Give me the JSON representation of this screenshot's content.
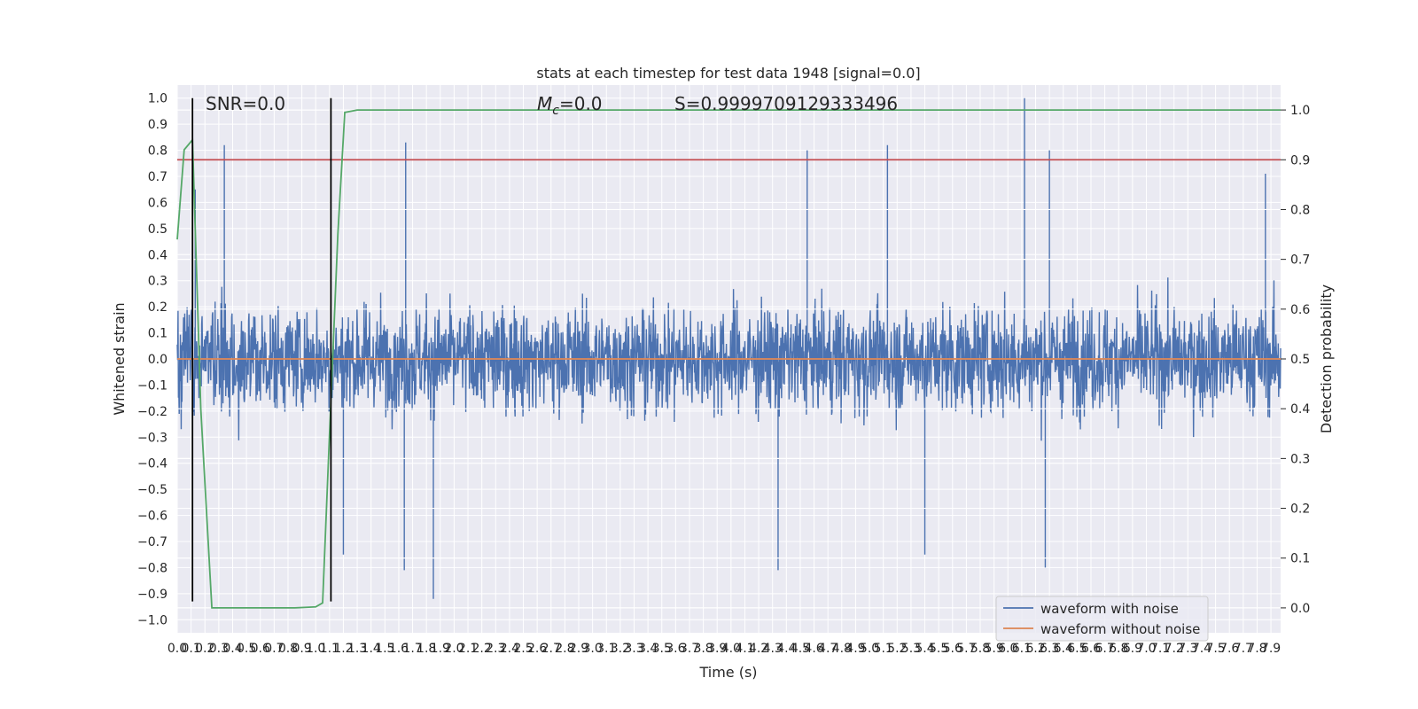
{
  "chart_data": {
    "type": "line",
    "title": "stats at each timestep for test data 1948 [signal=0.0]",
    "xlabel": "Time (s)",
    "ylabel": "Whitened strain",
    "y2label": "Detection probability",
    "xlim": [
      0.0,
      7.97
    ],
    "ylim": [
      -1.05,
      1.05
    ],
    "y2lim": [
      -0.05,
      1.05
    ],
    "x_tick_step": 0.1,
    "y_ticks": [
      -1.0,
      -0.9,
      -0.8,
      -0.7,
      -0.6,
      -0.5,
      -0.4,
      -0.3,
      -0.2,
      -0.1,
      0.0,
      0.1,
      0.2,
      0.3,
      0.4,
      0.5,
      0.6,
      0.7,
      0.8,
      0.9,
      1.0
    ],
    "y_tick_labels": [
      "−1.0",
      "−0.9",
      "−0.8",
      "−0.7",
      "−0.6",
      "−0.5",
      "−0.4",
      "−0.3",
      "−0.2",
      "−0.1",
      "0.0",
      "0.1",
      "0.2",
      "0.3",
      "0.4",
      "0.5",
      "0.6",
      "0.7",
      "0.8",
      "0.9",
      "1.0"
    ],
    "y2_ticks": [
      0.0,
      0.1,
      0.2,
      0.3,
      0.4,
      0.5,
      0.6,
      0.7,
      0.8,
      0.9,
      1.0
    ],
    "y2_tick_labels": [
      "0.0",
      "0.1",
      "0.2",
      "0.3",
      "0.4",
      "0.5",
      "0.6",
      "0.7",
      "0.8",
      "0.9",
      "1.0"
    ],
    "grid": true,
    "background_color": "#eaeaf2",
    "legend": {
      "placement": "lower-right",
      "entries": [
        {
          "label": "waveform with noise",
          "color": "#4c72b0"
        },
        {
          "label": "waveform without noise",
          "color": "#dd8452"
        }
      ]
    },
    "annotations": {
      "snr": "SNR=0.0",
      "mc_symbol": "M",
      "mc_sub": "c",
      "mc_value": "=0.0",
      "s": "S=0.9999709129333496"
    },
    "series": [
      {
        "name": "waveform with noise",
        "color": "#4c72b0",
        "axis": "left",
        "style": "dense noise",
        "typical_amplitude": 0.42,
        "peak_points": [
          {
            "x": 0.34,
            "y": 0.82
          },
          {
            "x": 1.65,
            "y": 0.83
          },
          {
            "x": 6.12,
            "y": 1.0
          },
          {
            "x": 4.55,
            "y": 0.8
          },
          {
            "x": 5.13,
            "y": 0.82
          },
          {
            "x": 6.3,
            "y": 0.8
          },
          {
            "x": 7.86,
            "y": 0.71
          },
          {
            "x": 1.85,
            "y": -0.92
          },
          {
            "x": 1.64,
            "y": -0.81
          },
          {
            "x": 4.34,
            "y": -0.81
          },
          {
            "x": 6.27,
            "y": -0.8
          },
          {
            "x": 1.2,
            "y": -0.75
          },
          {
            "x": 5.4,
            "y": -0.75
          },
          {
            "x": 0.13,
            "y": 0.65
          }
        ]
      },
      {
        "name": "waveform without noise",
        "color": "#dd8452",
        "axis": "left",
        "x": [
          0.0,
          7.97
        ],
        "y": [
          0.0,
          0.0
        ]
      },
      {
        "name": "",
        "color": "#55a868",
        "axis": "right",
        "x": [
          0.0,
          0.05,
          0.11,
          0.17,
          0.25,
          0.33,
          0.45,
          0.65,
          0.85,
          1.0,
          1.05,
          1.1,
          1.16,
          1.21,
          1.3,
          1.4,
          7.97
        ],
        "y": [
          0.74,
          0.92,
          0.94,
          0.4,
          0.0,
          0.0,
          0.0,
          0.0,
          0.0,
          0.002,
          0.01,
          0.35,
          0.75,
          0.995,
          1.0,
          1.0,
          1.0
        ]
      },
      {
        "name": "",
        "color": "#c44e52",
        "axis": "right",
        "x": [
          0.0,
          7.97
        ],
        "y": [
          0.9,
          0.9
        ]
      }
    ],
    "vertical_lines": [
      {
        "x": 0.11,
        "y_from": -0.93,
        "y_to": 1.0,
        "color": "#000000"
      },
      {
        "x": 1.11,
        "y_from": -0.93,
        "y_to": 1.0,
        "color": "#000000"
      }
    ]
  }
}
